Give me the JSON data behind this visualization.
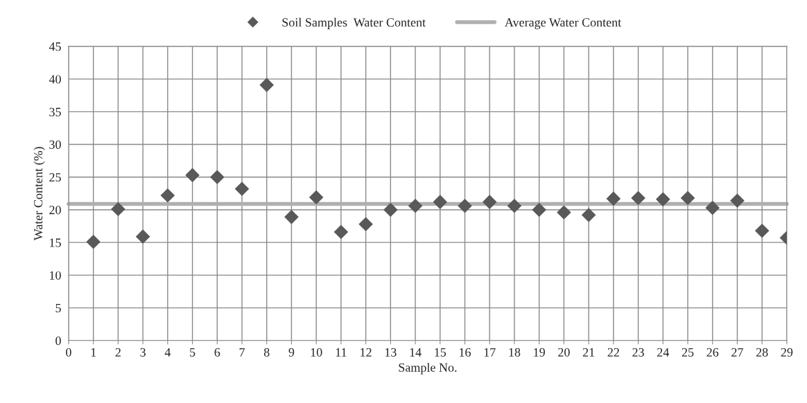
{
  "chart_data": {
    "type": "scatter",
    "xlabel": "Sample No.",
    "ylabel": "Water Content (%)",
    "series": [
      {
        "name": "Soil Samples  Water Content",
        "marker": "diamond",
        "color": "#595959",
        "x": [
          1,
          2,
          3,
          4,
          5,
          6,
          7,
          8,
          9,
          10,
          11,
          12,
          13,
          14,
          15,
          16,
          17,
          18,
          19,
          20,
          21,
          22,
          23,
          24,
          25,
          26,
          27,
          28,
          29
        ],
        "values": [
          15.1,
          20.1,
          15.9,
          22.2,
          25.3,
          25.0,
          23.2,
          39.1,
          18.9,
          21.9,
          16.6,
          17.8,
          20.0,
          20.6,
          21.2,
          20.6,
          21.2,
          20.6,
          20.0,
          19.6,
          19.2,
          21.7,
          21.8,
          21.6,
          21.8,
          20.3,
          21.4,
          16.8,
          15.7
        ]
      },
      {
        "name": "Average Water Content",
        "type": "line",
        "marker": "none",
        "line_style": "solid",
        "color": "#b0b0b0",
        "x": [
          0,
          29
        ],
        "values": [
          20.9,
          20.9
        ]
      }
    ],
    "xlim": [
      0,
      29
    ],
    "xticks": [
      0,
      1,
      2,
      3,
      4,
      5,
      6,
      7,
      8,
      9,
      10,
      11,
      12,
      13,
      14,
      15,
      16,
      17,
      18,
      19,
      20,
      21,
      22,
      23,
      24,
      25,
      26,
      27,
      28,
      29
    ],
    "ylim": [
      0,
      45
    ],
    "yticks": [
      0,
      5,
      10,
      15,
      20,
      25,
      30,
      35,
      40,
      45
    ],
    "grid": true,
    "legend": "top"
  }
}
